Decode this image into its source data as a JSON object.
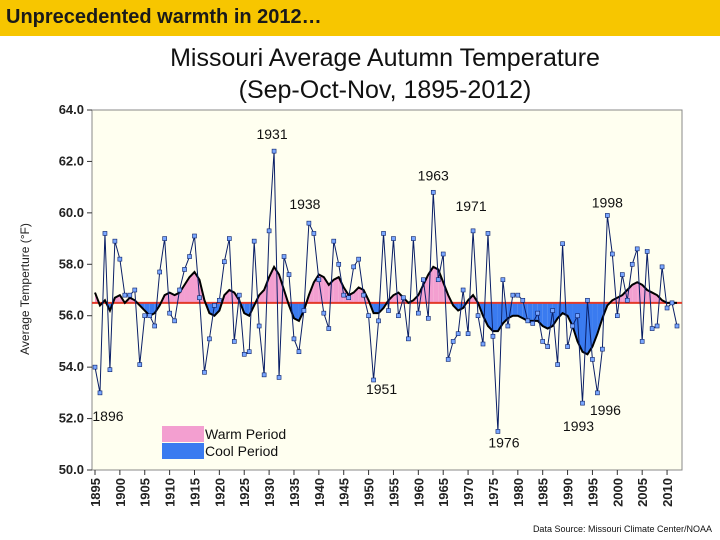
{
  "banner": {
    "text": "Unprecedented warmth in 2012…",
    "color": "#f7c600"
  },
  "source_note": "Data Source: Missouri Climate Center/NOAA",
  "chart_data": {
    "type": "line",
    "title": "Missouri Average Autumn Temperature",
    "subtitle": "(Sep-Oct-Nov, 1895-2012)",
    "ylabel": "Average Temperture (°F)",
    "xlabel": "",
    "ylim": [
      50.0,
      64.0
    ],
    "yticks": [
      "50.0",
      "52.0",
      "54.0",
      "56.0",
      "58.0",
      "60.0",
      "62.0",
      "64.0"
    ],
    "xticks": [
      "1895",
      "1900",
      "1905",
      "1910",
      "1915",
      "1920",
      "1925",
      "1930",
      "1935",
      "1940",
      "1945",
      "1950",
      "1955",
      "1960",
      "1965",
      "1970",
      "1975",
      "1980",
      "1985",
      "1990",
      "1995",
      "2000",
      "2005",
      "2010"
    ],
    "baseline": 56.5,
    "legend": {
      "position": "bottom-left",
      "entries": [
        {
          "label": "Warm Period",
          "color": "#f39fd0"
        },
        {
          "label": "Cool Period",
          "color": "#3a7bf0"
        }
      ]
    },
    "colors": {
      "line": "#0a1f66",
      "marker": "#7aa7ff",
      "baseline": "#e23a2a",
      "smooth": "#000000",
      "plot_bg": "#fffff0"
    },
    "annotations": [
      {
        "label": "1931",
        "year": 1931
      },
      {
        "label": "1963",
        "year": 1963
      },
      {
        "label": "1938",
        "year": 1938
      },
      {
        "label": "1971",
        "year": 1971
      },
      {
        "label": "1998",
        "year": 1998
      },
      {
        "label": "1951",
        "year": 1951
      },
      {
        "label": "1896",
        "year": 1896
      },
      {
        "label": "1976",
        "year": 1976
      },
      {
        "label": "1993",
        "year": 1993
      },
      {
        "label": "1996",
        "year": 1996
      }
    ],
    "x": [
      1895,
      1896,
      1897,
      1898,
      1899,
      1900,
      1901,
      1902,
      1903,
      1904,
      1905,
      1906,
      1907,
      1908,
      1909,
      1910,
      1911,
      1912,
      1913,
      1914,
      1915,
      1916,
      1917,
      1918,
      1919,
      1920,
      1921,
      1922,
      1923,
      1924,
      1925,
      1926,
      1927,
      1928,
      1929,
      1930,
      1931,
      1932,
      1933,
      1934,
      1935,
      1936,
      1937,
      1938,
      1939,
      1940,
      1941,
      1942,
      1943,
      1944,
      1945,
      1946,
      1947,
      1948,
      1949,
      1950,
      1951,
      1952,
      1953,
      1954,
      1955,
      1956,
      1957,
      1958,
      1959,
      1960,
      1961,
      1962,
      1963,
      1964,
      1965,
      1966,
      1967,
      1968,
      1969,
      1970,
      1971,
      1972,
      1973,
      1974,
      1975,
      1976,
      1977,
      1978,
      1979,
      1980,
      1981,
      1982,
      1983,
      1984,
      1985,
      1986,
      1987,
      1988,
      1989,
      1990,
      1991,
      1992,
      1993,
      1994,
      1995,
      1996,
      1997,
      1998,
      1999,
      2000,
      2001,
      2002,
      2003,
      2004,
      2005,
      2006,
      2007,
      2008,
      2009,
      2010,
      2011,
      2012
    ],
    "values": [
      54.0,
      53.0,
      59.2,
      53.9,
      58.9,
      58.2,
      56.8,
      56.8,
      57.0,
      54.1,
      56.0,
      56.0,
      55.6,
      57.7,
      59.0,
      56.1,
      55.8,
      57.0,
      57.8,
      58.3,
      59.1,
      56.7,
      53.8,
      55.1,
      56.4,
      56.6,
      58.1,
      59.0,
      55.0,
      56.8,
      54.5,
      54.6,
      58.9,
      55.6,
      53.7,
      59.3,
      62.4,
      53.6,
      58.3,
      57.6,
      55.1,
      54.6,
      56.2,
      59.6,
      59.2,
      57.4,
      56.1,
      55.5,
      58.9,
      58.0,
      56.8,
      56.7,
      57.9,
      58.2,
      56.8,
      56.0,
      53.5,
      55.8,
      59.2,
      56.2,
      59.0,
      56.0,
      56.7,
      55.1,
      59.0,
      56.1,
      57.4,
      55.9,
      60.8,
      57.4,
      58.4,
      54.3,
      55.0,
      55.3,
      57.0,
      55.3,
      59.3,
      56.0,
      54.9,
      59.2,
      55.2,
      51.5,
      57.4,
      55.6,
      56.8,
      56.8,
      56.6,
      55.8,
      55.7,
      56.1,
      55.0,
      54.8,
      56.2,
      54.1,
      58.8,
      54.8,
      55.6,
      56.0,
      52.6,
      56.6,
      54.3,
      53.0,
      54.7,
      59.9,
      58.4,
      56.0,
      57.6,
      56.6,
      58.0,
      58.6,
      55.0,
      58.5,
      55.5,
      55.6,
      57.9,
      56.3,
      56.5,
      55.6
    ],
    "smooth": [
      56.9,
      56.4,
      56.6,
      56.2,
      56.7,
      56.8,
      56.5,
      56.7,
      56.6,
      56.4,
      56.2,
      56.0,
      56.1,
      56.4,
      56.8,
      56.9,
      56.8,
      56.9,
      57.2,
      57.5,
      57.7,
      57.4,
      56.6,
      56.1,
      56.0,
      56.2,
      56.8,
      57.0,
      56.9,
      56.6,
      56.1,
      56.0,
      56.4,
      56.8,
      57.0,
      57.5,
      57.9,
      57.6,
      57.0,
      56.4,
      55.9,
      55.8,
      56.2,
      56.8,
      57.3,
      57.6,
      57.5,
      57.2,
      57.4,
      57.5,
      57.1,
      56.8,
      56.9,
      57.1,
      57.0,
      56.6,
      56.1,
      56.1,
      56.3,
      56.6,
      56.8,
      56.9,
      56.7,
      56.5,
      56.6,
      56.8,
      57.2,
      57.6,
      57.9,
      57.8,
      57.3,
      56.8,
      56.4,
      56.2,
      56.3,
      56.6,
      56.8,
      56.5,
      56.0,
      55.6,
      55.4,
      55.4,
      55.7,
      55.9,
      56.0,
      56.0,
      55.9,
      55.8,
      55.8,
      55.8,
      55.6,
      55.5,
      55.6,
      55.9,
      56.1,
      56.0,
      55.6,
      55.0,
      54.6,
      54.5,
      54.8,
      55.3,
      55.9,
      56.4,
      56.6,
      56.7,
      56.8,
      57.0,
      57.2,
      57.3,
      57.2,
      57.0,
      56.9,
      56.8,
      56.6,
      56.5,
      56.5,
      56.5
    ]
  }
}
